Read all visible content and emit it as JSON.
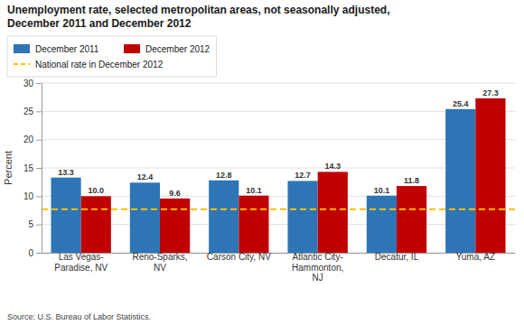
{
  "chart_data": {
    "type": "bar",
    "title": "Unemployment rate, selected metropolitan areas, not seasonally adjusted,\nDecember 2011 and December 2012",
    "categories": [
      "Las Vegas-\nParadise, NV",
      "Reno-Sparks,\nNV",
      "Carson City, NV",
      "Atlantic City-\nHammonton,\nNJ",
      "Decatur, IL",
      "Yuma, AZ"
    ],
    "series": [
      {
        "name": "December 2011",
        "color": "#2E75B6",
        "values": [
          13.3,
          12.4,
          12.8,
          12.7,
          10.1,
          25.4
        ],
        "value_labels": [
          "13.3",
          "12.4",
          "12.8",
          "12.7",
          "10.1",
          "25.4"
        ]
      },
      {
        "name": "December 2012",
        "color": "#C00000",
        "values": [
          10.0,
          9.6,
          10.1,
          14.3,
          11.8,
          27.3
        ],
        "value_labels": [
          "10.0",
          "9.6",
          "10.1",
          "14.3",
          "11.8",
          "27.3"
        ]
      }
    ],
    "reference_line": {
      "name": "National rate in December 2012",
      "value": 7.7,
      "color": "#FFC000",
      "line_style": "dashed"
    },
    "y_label": "Percent",
    "ylim": [
      0,
      30
    ],
    "yticks": [
      0,
      5,
      10,
      15,
      20,
      25,
      30
    ],
    "grid": true,
    "data_labels": true,
    "legend": "top-left",
    "source": "Source: U.S. Bureau of Labor Statistics."
  }
}
